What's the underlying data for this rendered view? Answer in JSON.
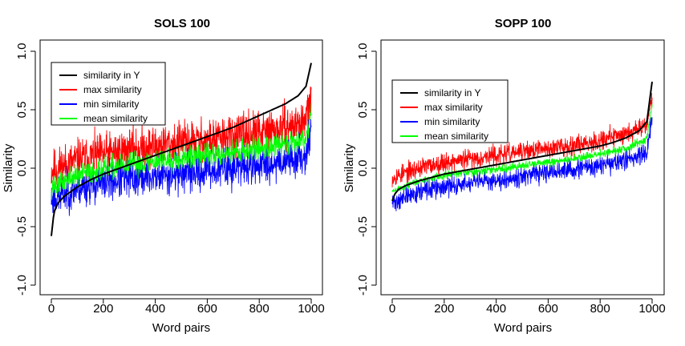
{
  "chart_data": [
    {
      "type": "line",
      "title": "SOLS 100",
      "xlabel": "Word pairs",
      "ylabel": "Similarity",
      "xlim": [
        0,
        1000
      ],
      "ylim": [
        -1.0,
        1.0
      ],
      "xticks": [
        "0",
        "200",
        "400",
        "600",
        "800",
        "1000"
      ],
      "yticks": [
        "-1.0",
        "-0.5",
        "0.0",
        "0.5",
        "1.0"
      ],
      "legend_position": "top-left",
      "series": [
        {
          "name": "similarity in Y",
          "color": "#000000",
          "sorted": true,
          "x": [
            0,
            10,
            25,
            50,
            100,
            150,
            200,
            250,
            300,
            350,
            400,
            450,
            500,
            550,
            600,
            650,
            700,
            750,
            800,
            850,
            900,
            950,
            980,
            1000
          ],
          "y": [
            -0.58,
            -0.38,
            -0.3,
            -0.24,
            -0.16,
            -0.1,
            -0.05,
            -0.01,
            0.03,
            0.07,
            0.11,
            0.15,
            0.19,
            0.23,
            0.27,
            0.31,
            0.35,
            0.4,
            0.45,
            0.5,
            0.55,
            0.62,
            0.7,
            0.9
          ]
        },
        {
          "name": "max similarity",
          "color": "#ff0000",
          "noise": 0.11,
          "seed": 11,
          "x": [
            0,
            100,
            200,
            300,
            400,
            500,
            600,
            700,
            800,
            900,
            980,
            1000
          ],
          "y": [
            -0.02,
            0.07,
            0.12,
            0.16,
            0.19,
            0.22,
            0.24,
            0.27,
            0.3,
            0.34,
            0.4,
            0.62
          ]
        },
        {
          "name": "min similarity",
          "color": "#0000ff",
          "noise": 0.1,
          "seed": 23,
          "x": [
            0,
            100,
            200,
            300,
            400,
            500,
            600,
            700,
            800,
            900,
            980,
            1000
          ],
          "y": [
            -0.26,
            -0.17,
            -0.12,
            -0.09,
            -0.07,
            -0.04,
            -0.02,
            0.0,
            0.03,
            0.07,
            0.12,
            0.35
          ]
        },
        {
          "name": "mean similarity",
          "color": "#00ff00",
          "noise": 0.06,
          "seed": 37,
          "x": [
            0,
            100,
            200,
            300,
            400,
            500,
            600,
            700,
            800,
            900,
            980,
            1000
          ],
          "y": [
            -0.16,
            -0.06,
            -0.01,
            0.03,
            0.06,
            0.09,
            0.11,
            0.14,
            0.17,
            0.21,
            0.26,
            0.5
          ]
        }
      ]
    },
    {
      "type": "line",
      "title": "SOPP 100",
      "xlabel": "Word pairs",
      "ylabel": "Similarity",
      "xlim": [
        0,
        1000
      ],
      "ylim": [
        -1.0,
        1.0
      ],
      "xticks": [
        "0",
        "200",
        "400",
        "600",
        "800",
        "1000"
      ],
      "yticks": [
        "-1.0",
        "-0.5",
        "0.0",
        "0.5",
        "1.0"
      ],
      "legend_position": "top-left",
      "series": [
        {
          "name": "similarity in Y",
          "color": "#000000",
          "sorted": true,
          "x": [
            0,
            10,
            25,
            50,
            100,
            150,
            200,
            250,
            300,
            350,
            400,
            450,
            500,
            550,
            600,
            650,
            700,
            750,
            800,
            850,
            900,
            950,
            980,
            1000
          ],
          "y": [
            -0.28,
            -0.22,
            -0.18,
            -0.15,
            -0.11,
            -0.08,
            -0.05,
            -0.03,
            -0.01,
            0.01,
            0.03,
            0.05,
            0.07,
            0.09,
            0.11,
            0.13,
            0.15,
            0.17,
            0.19,
            0.22,
            0.26,
            0.32,
            0.4,
            0.74
          ]
        },
        {
          "name": "max similarity",
          "color": "#ff0000",
          "noise": 0.05,
          "seed": 53,
          "x": [
            0,
            100,
            200,
            300,
            400,
            500,
            600,
            700,
            800,
            900,
            980,
            1000
          ],
          "y": [
            -0.08,
            0.0,
            0.05,
            0.08,
            0.11,
            0.14,
            0.17,
            0.2,
            0.24,
            0.3,
            0.38,
            0.62
          ]
        },
        {
          "name": "min similarity",
          "color": "#0000ff",
          "noise": 0.05,
          "seed": 71,
          "x": [
            0,
            100,
            200,
            300,
            400,
            500,
            600,
            700,
            800,
            900,
            980,
            1000
          ],
          "y": [
            -0.3,
            -0.2,
            -0.16,
            -0.13,
            -0.1,
            -0.07,
            -0.04,
            -0.01,
            0.02,
            0.07,
            0.14,
            0.45
          ]
        },
        {
          "name": "mean similarity",
          "color": "#00ff00",
          "noise": 0.02,
          "seed": 89,
          "x": [
            0,
            100,
            200,
            300,
            400,
            500,
            600,
            700,
            800,
            900,
            980,
            1000
          ],
          "y": [
            -0.2,
            -0.11,
            -0.06,
            -0.03,
            -0.01,
            0.02,
            0.05,
            0.08,
            0.12,
            0.17,
            0.25,
            0.55
          ]
        }
      ]
    }
  ]
}
